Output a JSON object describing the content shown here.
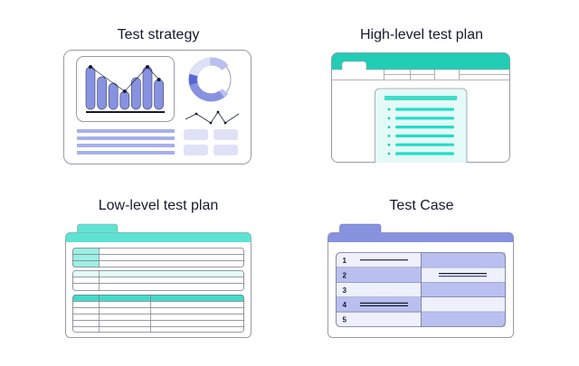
{
  "panels": [
    {
      "title": "Test strategy"
    },
    {
      "title": "High-level test plan"
    },
    {
      "title": "Low-level test plan"
    },
    {
      "title": "Test Case",
      "row_numbers": [
        "1",
        "2",
        "3",
        "4",
        "5"
      ]
    }
  ],
  "colors": {
    "purple": "#8792e0",
    "purple_light": "#b9c0ef",
    "purple_pale": "#eef0fb",
    "teal": "#22cdb6",
    "teal_light": "#5ee3d2",
    "teal_pale": "#e4faf6",
    "outline": "#9a9aa6",
    "ink": "#151a30"
  }
}
